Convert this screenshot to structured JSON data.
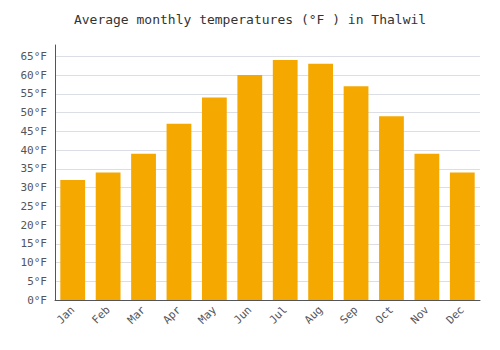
{
  "chart_data": {
    "type": "bar",
    "title": "Average monthly temperatures (°F ) in Thalwil",
    "categories": [
      "Jan",
      "Feb",
      "Mar",
      "Apr",
      "May",
      "Jun",
      "Jul",
      "Aug",
      "Sep",
      "Oct",
      "Nov",
      "Dec"
    ],
    "values": [
      32,
      34,
      39,
      47,
      54,
      60,
      64,
      63,
      57,
      49,
      39,
      34
    ],
    "color": "#F5A800",
    "ylim": [
      0,
      68
    ],
    "yticks": [
      {
        "value": 0,
        "label": "0°F"
      },
      {
        "value": 5,
        "label": "5°F"
      },
      {
        "value": 10,
        "label": "10°F"
      },
      {
        "value": 15,
        "label": "15°F"
      },
      {
        "value": 20,
        "label": "20°F"
      },
      {
        "value": 25,
        "label": "25°F"
      },
      {
        "value": 30,
        "label": "30°F"
      },
      {
        "value": 35,
        "label": "35°F"
      },
      {
        "value": 40,
        "label": "40°F"
      },
      {
        "value": 45,
        "label": "45°F"
      },
      {
        "value": 50,
        "label": "50°F"
      },
      {
        "value": 55,
        "label": "55°F"
      },
      {
        "value": 60,
        "label": "60°F"
      },
      {
        "value": 65,
        "label": "65°F"
      }
    ],
    "grid": true
  }
}
